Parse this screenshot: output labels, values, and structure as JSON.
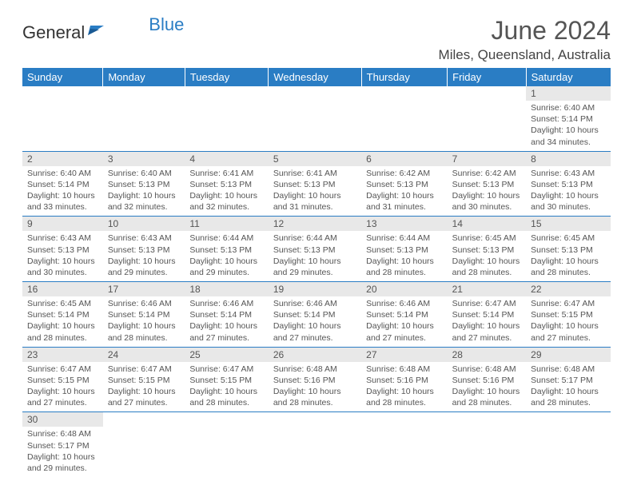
{
  "brand": {
    "name_a": "General",
    "name_b": "Blue"
  },
  "title": "June 2024",
  "location": "Miles, Queensland, Australia",
  "day_headers": [
    "Sunday",
    "Monday",
    "Tuesday",
    "Wednesday",
    "Thursday",
    "Friday",
    "Saturday"
  ],
  "colors": {
    "accent": "#2a7dc4",
    "head_bg": "#e8e8e8",
    "text": "#555"
  },
  "weeks": [
    [
      null,
      null,
      null,
      null,
      null,
      null,
      {
        "n": "1",
        "sr": "6:40 AM",
        "ss": "5:14 PM",
        "dl": "10 hours and 34 minutes."
      }
    ],
    [
      {
        "n": "2",
        "sr": "6:40 AM",
        "ss": "5:14 PM",
        "dl": "10 hours and 33 minutes."
      },
      {
        "n": "3",
        "sr": "6:40 AM",
        "ss": "5:13 PM",
        "dl": "10 hours and 32 minutes."
      },
      {
        "n": "4",
        "sr": "6:41 AM",
        "ss": "5:13 PM",
        "dl": "10 hours and 32 minutes."
      },
      {
        "n": "5",
        "sr": "6:41 AM",
        "ss": "5:13 PM",
        "dl": "10 hours and 31 minutes."
      },
      {
        "n": "6",
        "sr": "6:42 AM",
        "ss": "5:13 PM",
        "dl": "10 hours and 31 minutes."
      },
      {
        "n": "7",
        "sr": "6:42 AM",
        "ss": "5:13 PM",
        "dl": "10 hours and 30 minutes."
      },
      {
        "n": "8",
        "sr": "6:43 AM",
        "ss": "5:13 PM",
        "dl": "10 hours and 30 minutes."
      }
    ],
    [
      {
        "n": "9",
        "sr": "6:43 AM",
        "ss": "5:13 PM",
        "dl": "10 hours and 30 minutes."
      },
      {
        "n": "10",
        "sr": "6:43 AM",
        "ss": "5:13 PM",
        "dl": "10 hours and 29 minutes."
      },
      {
        "n": "11",
        "sr": "6:44 AM",
        "ss": "5:13 PM",
        "dl": "10 hours and 29 minutes."
      },
      {
        "n": "12",
        "sr": "6:44 AM",
        "ss": "5:13 PM",
        "dl": "10 hours and 29 minutes."
      },
      {
        "n": "13",
        "sr": "6:44 AM",
        "ss": "5:13 PM",
        "dl": "10 hours and 28 minutes."
      },
      {
        "n": "14",
        "sr": "6:45 AM",
        "ss": "5:13 PM",
        "dl": "10 hours and 28 minutes."
      },
      {
        "n": "15",
        "sr": "6:45 AM",
        "ss": "5:13 PM",
        "dl": "10 hours and 28 minutes."
      }
    ],
    [
      {
        "n": "16",
        "sr": "6:45 AM",
        "ss": "5:14 PM",
        "dl": "10 hours and 28 minutes."
      },
      {
        "n": "17",
        "sr": "6:46 AM",
        "ss": "5:14 PM",
        "dl": "10 hours and 28 minutes."
      },
      {
        "n": "18",
        "sr": "6:46 AM",
        "ss": "5:14 PM",
        "dl": "10 hours and 27 minutes."
      },
      {
        "n": "19",
        "sr": "6:46 AM",
        "ss": "5:14 PM",
        "dl": "10 hours and 27 minutes."
      },
      {
        "n": "20",
        "sr": "6:46 AM",
        "ss": "5:14 PM",
        "dl": "10 hours and 27 minutes."
      },
      {
        "n": "21",
        "sr": "6:47 AM",
        "ss": "5:14 PM",
        "dl": "10 hours and 27 minutes."
      },
      {
        "n": "22",
        "sr": "6:47 AM",
        "ss": "5:15 PM",
        "dl": "10 hours and 27 minutes."
      }
    ],
    [
      {
        "n": "23",
        "sr": "6:47 AM",
        "ss": "5:15 PM",
        "dl": "10 hours and 27 minutes."
      },
      {
        "n": "24",
        "sr": "6:47 AM",
        "ss": "5:15 PM",
        "dl": "10 hours and 27 minutes."
      },
      {
        "n": "25",
        "sr": "6:47 AM",
        "ss": "5:15 PM",
        "dl": "10 hours and 28 minutes."
      },
      {
        "n": "26",
        "sr": "6:48 AM",
        "ss": "5:16 PM",
        "dl": "10 hours and 28 minutes."
      },
      {
        "n": "27",
        "sr": "6:48 AM",
        "ss": "5:16 PM",
        "dl": "10 hours and 28 minutes."
      },
      {
        "n": "28",
        "sr": "6:48 AM",
        "ss": "5:16 PM",
        "dl": "10 hours and 28 minutes."
      },
      {
        "n": "29",
        "sr": "6:48 AM",
        "ss": "5:17 PM",
        "dl": "10 hours and 28 minutes."
      }
    ],
    [
      {
        "n": "30",
        "sr": "6:48 AM",
        "ss": "5:17 PM",
        "dl": "10 hours and 29 minutes."
      },
      null,
      null,
      null,
      null,
      null,
      null
    ]
  ],
  "labels": {
    "sunrise": "Sunrise:",
    "sunset": "Sunset:",
    "daylight": "Daylight:"
  }
}
